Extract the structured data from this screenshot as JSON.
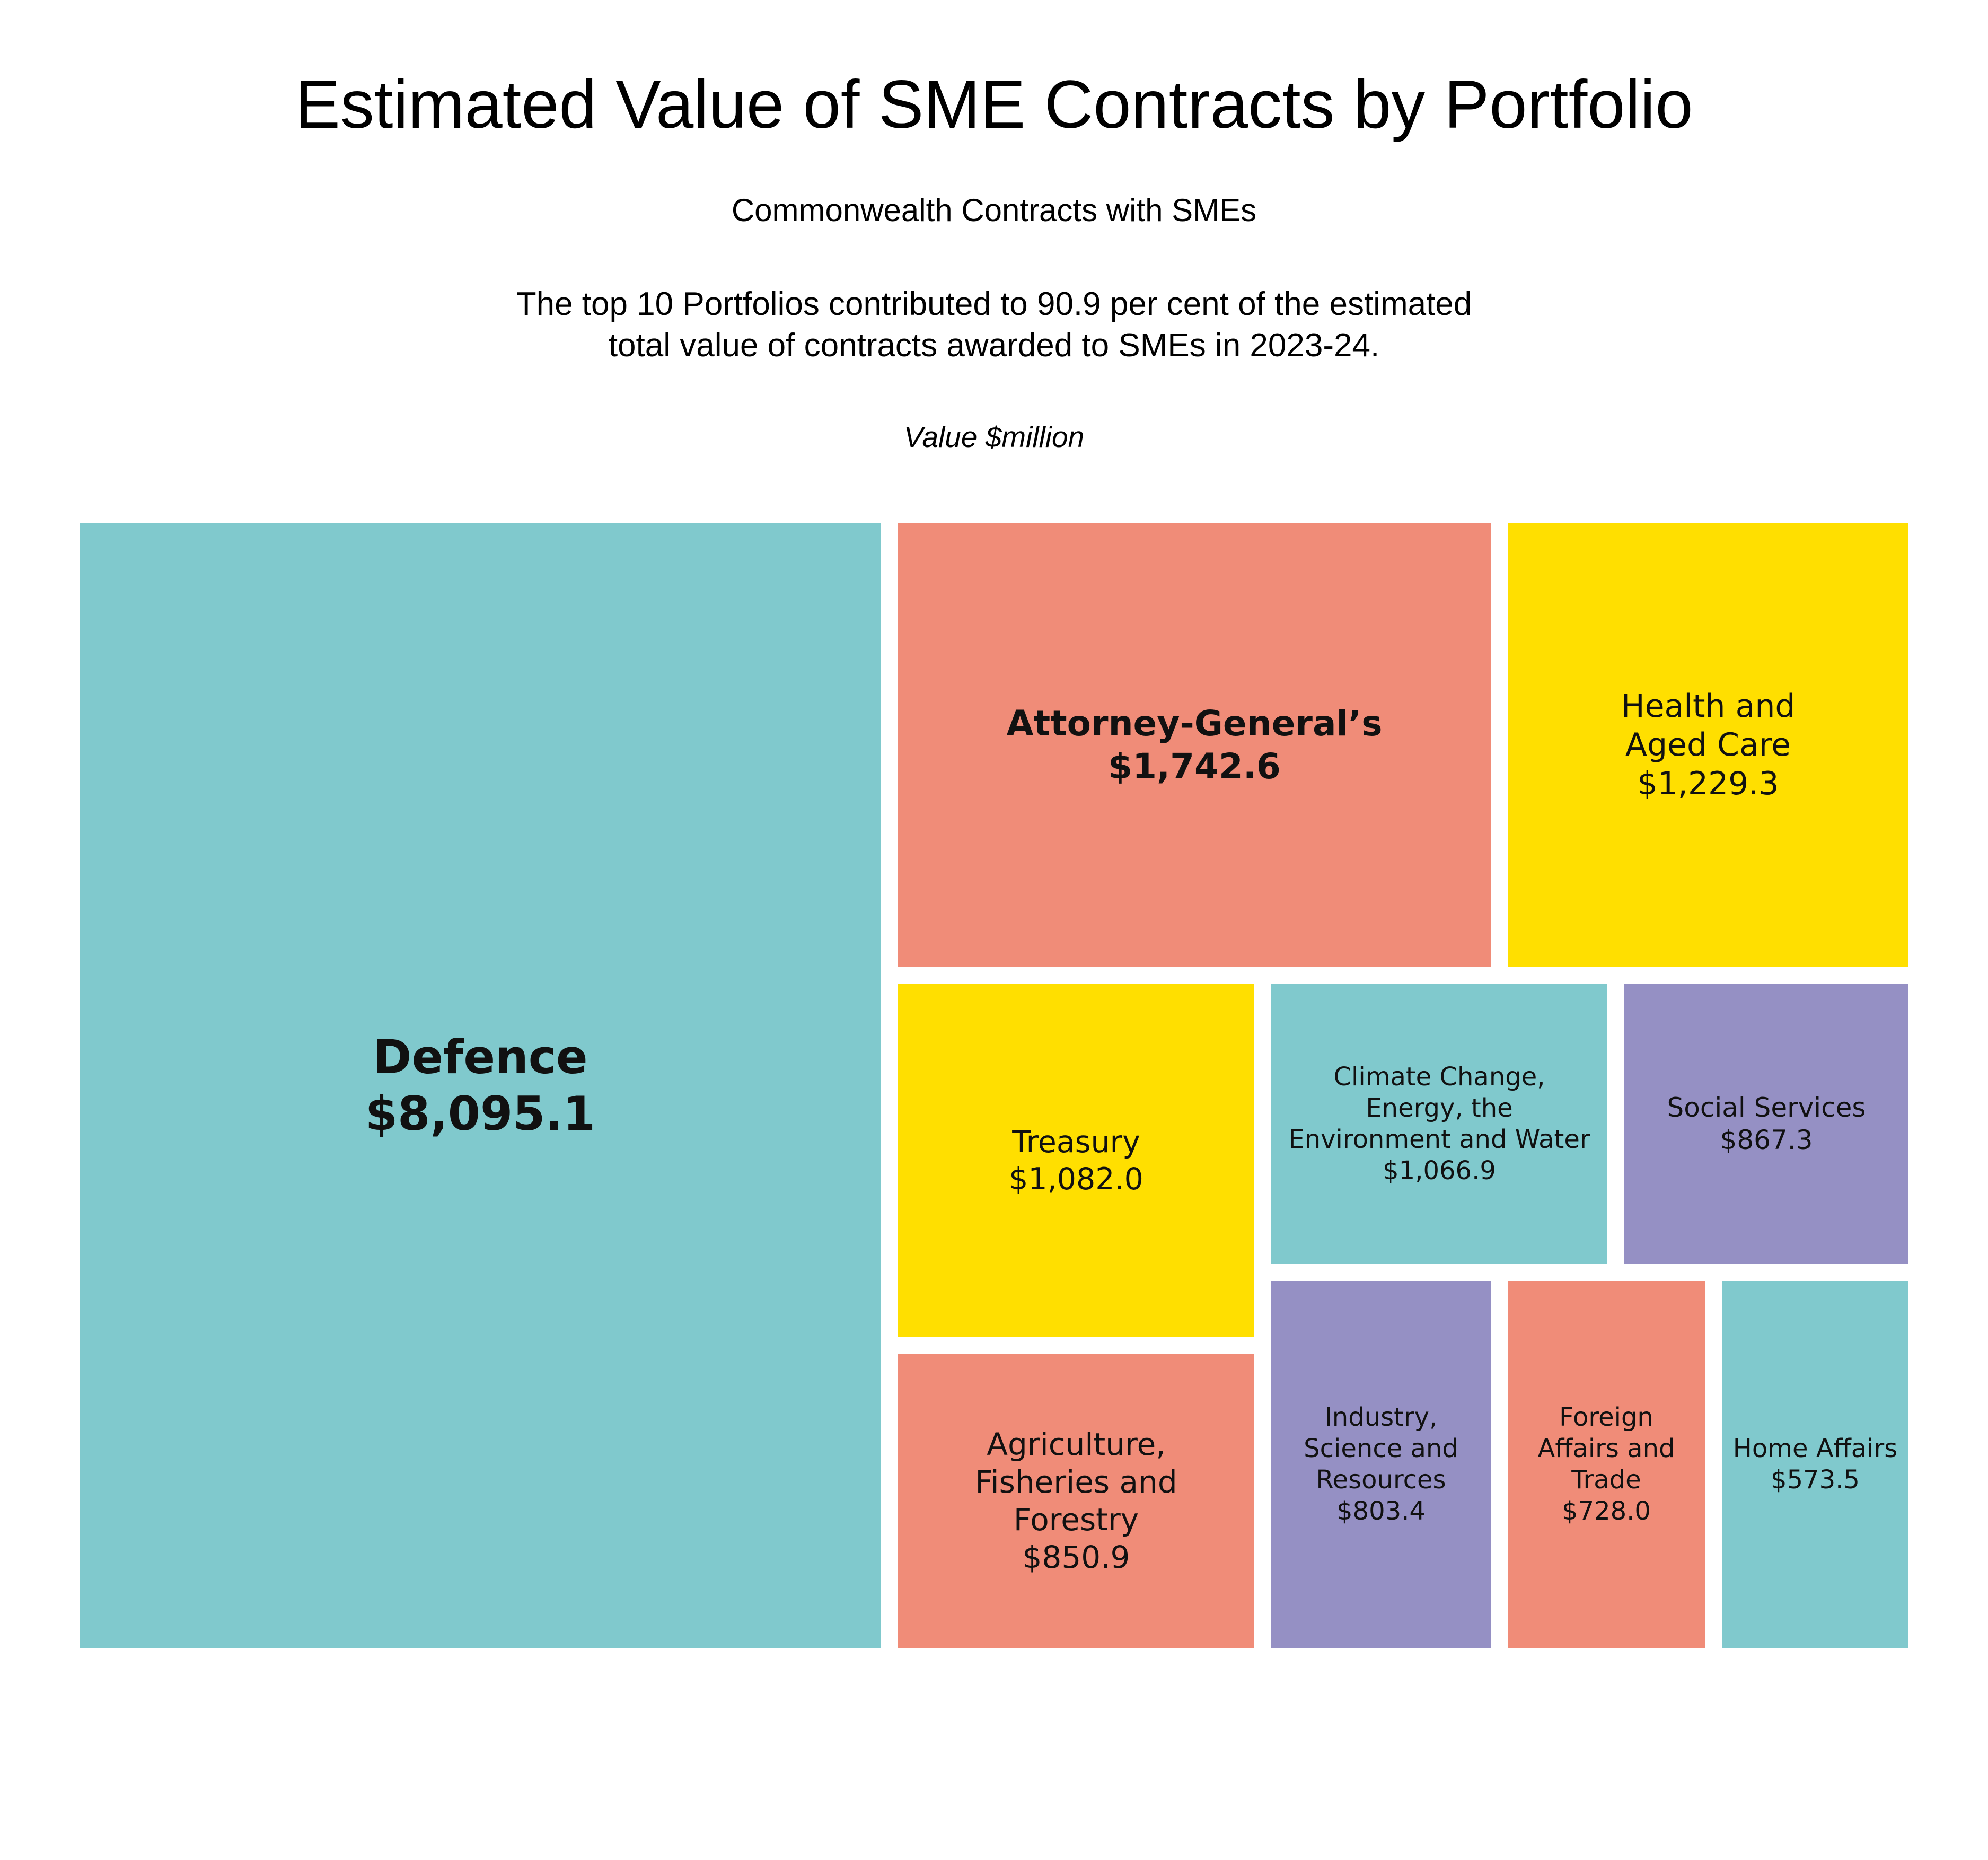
{
  "title": "Estimated Value of SME Contracts by Portfolio",
  "subtitle": "Commonwealth Contracts with SMEs",
  "note_lines": [
    "The top 10 Portfolios contributed to 90.9 per cent of the estimated",
    "total value of contracts awarded to SMEs in 2023-24."
  ],
  "unit_label": "Value $million",
  "colors": {
    "teal": "#80c9cd",
    "salmon": "#f08c78",
    "yellow": "#ffdf00",
    "purple": "#9590c4"
  },
  "chart_data": {
    "type": "treemap",
    "title": "Estimated Value of SME Contracts by Portfolio",
    "subtitle": "Commonwealth Contracts with SMEs",
    "unit": "Value $million",
    "items": [
      {
        "label_lines": [
          "Defence"
        ],
        "value": 8095.1,
        "value_label": "$8,095.1",
        "color": "#80c9cd"
      },
      {
        "label_lines": [
          "Attorney-General’s"
        ],
        "value": 1742.6,
        "value_label": "$1,742.6",
        "color": "#f08c78"
      },
      {
        "label_lines": [
          "Health and",
          "Aged Care"
        ],
        "value": 1229.3,
        "value_label": "$1,229.3",
        "color": "#ffdf00"
      },
      {
        "label_lines": [
          "Treasury"
        ],
        "value": 1082.0,
        "value_label": "$1,082.0",
        "color": "#ffdf00"
      },
      {
        "label_lines": [
          "Climate Change,",
          "Energy, the",
          "Environment and Water"
        ],
        "value": 1066.9,
        "value_label": "$1,066.9",
        "color": "#80c9cd"
      },
      {
        "label_lines": [
          "Social Services"
        ],
        "value": 867.3,
        "value_label": "$867.3",
        "color": "#9590c4"
      },
      {
        "label_lines": [
          "Agriculture,",
          "Fisheries and",
          "Forestry"
        ],
        "value": 850.9,
        "value_label": "$850.9",
        "color": "#f08c78"
      },
      {
        "label_lines": [
          "Industry,",
          "Science and",
          "Resources"
        ],
        "value": 803.4,
        "value_label": "$803.4",
        "color": "#9590c4"
      },
      {
        "label_lines": [
          "Foreign",
          "Affairs and",
          "Trade"
        ],
        "value": 728.0,
        "value_label": "$728.0",
        "color": "#f08c78"
      },
      {
        "label_lines": [
          "Home Affairs"
        ],
        "value": 573.5,
        "value_label": "$573.5",
        "color": "#80c9cd"
      }
    ]
  }
}
